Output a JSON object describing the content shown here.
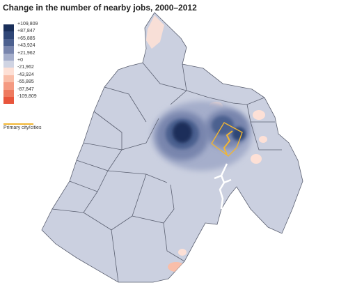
{
  "title": "Change in the number of nearby jobs, 2000–2012",
  "legend": {
    "items": [
      {
        "label": "+109,809",
        "color": "#1a2f5a"
      },
      {
        "label": "+87,847",
        "color": "#2f4677"
      },
      {
        "label": "+65,885",
        "color": "#4c608f"
      },
      {
        "label": "+43,924",
        "color": "#7885ad"
      },
      {
        "label": "+21,962",
        "color": "#a5aecb"
      },
      {
        "label": "+0",
        "color": "#d0d4e3"
      },
      {
        "label": "-21,962",
        "color": "#fde0d6"
      },
      {
        "label": "-43,924",
        "color": "#f9bea9"
      },
      {
        "label": "-65,885",
        "color": "#f49a82"
      },
      {
        "label": "-87,847",
        "color": "#ee7a5f"
      },
      {
        "label": "-109,809",
        "color": "#e8553c"
      }
    ],
    "primary_city_label": "Primary city/cities",
    "primary_city_color": "#f2b632"
  },
  "colors": {
    "base_region": "#cbd0e0",
    "county_border": "#5a5f70",
    "water": "#ffffff"
  }
}
